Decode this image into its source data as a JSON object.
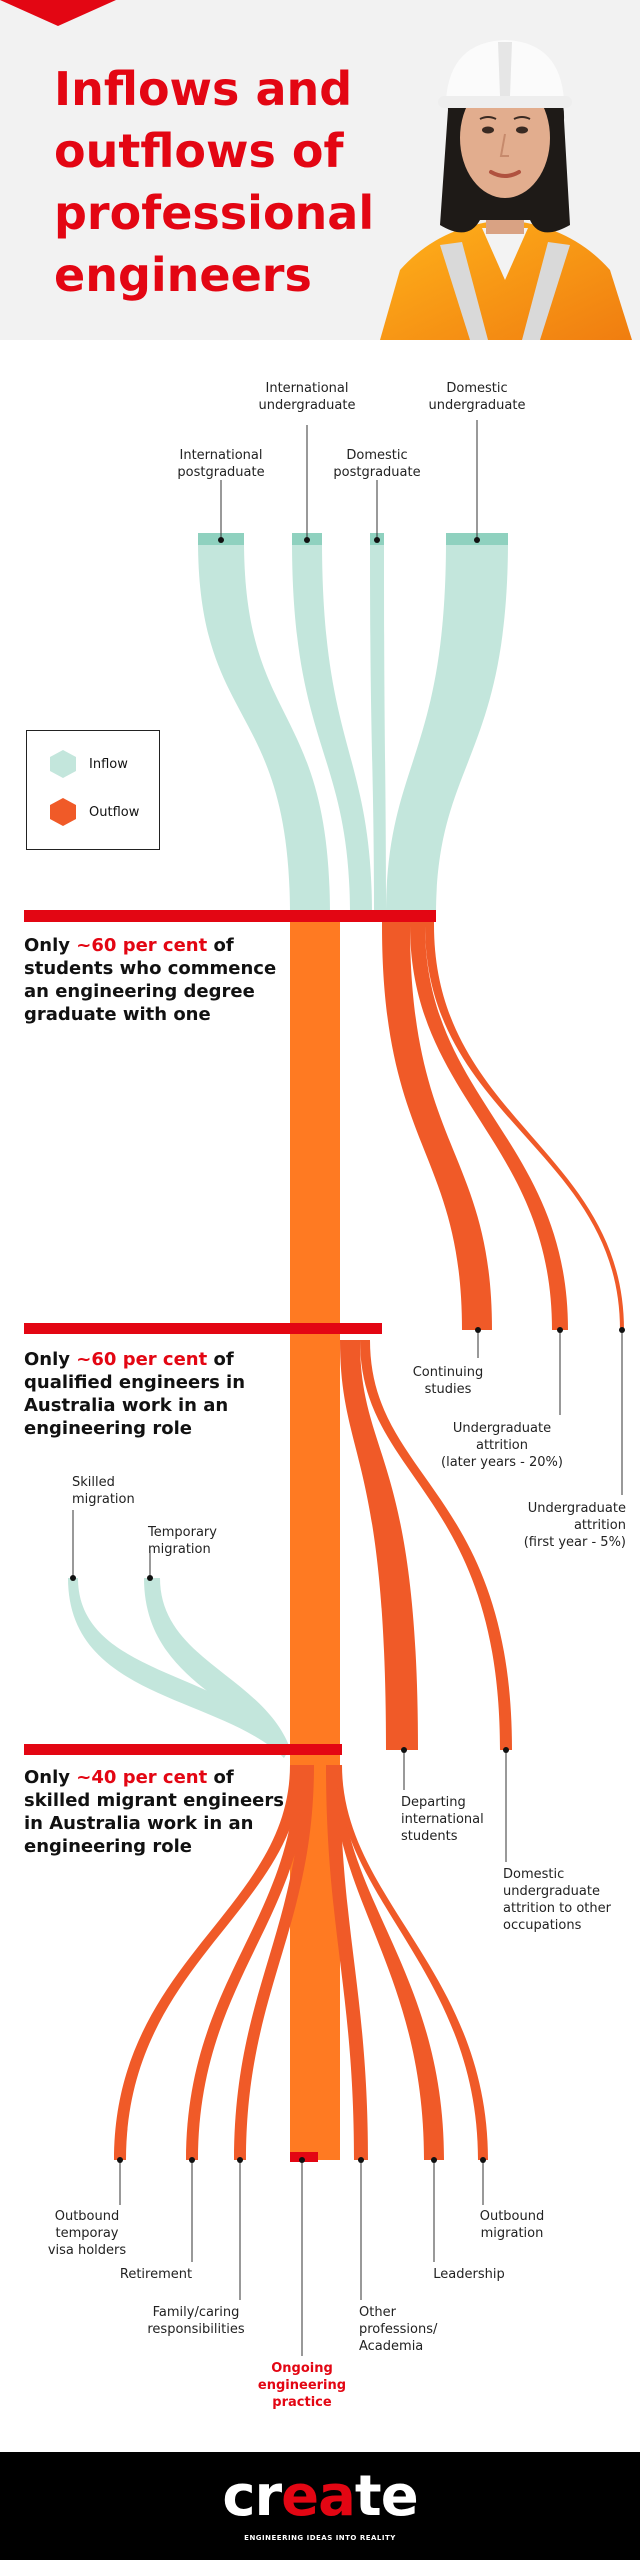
{
  "hero": {
    "title": "Inflows and outflows of professional engineers"
  },
  "legend": {
    "inflow": "Inflow",
    "outflow": "Outflow"
  },
  "inflows": {
    "international_postgraduate": "International\npostgraduate",
    "international_undergraduate": "International\nundergraduate",
    "domestic_postgraduate": "Domestic\npostgraduate",
    "domestic_undergraduate": "Domestic\nundergraduate"
  },
  "stats": [
    {
      "prefix": "Only ",
      "highlight": "~60 per cent",
      "suffix": " of students who commence an engineering degree graduate with one"
    },
    {
      "prefix": "Only ",
      "highlight": "~60 per cent",
      "suffix": " of qualified engineers in Australia work in an engineering role"
    },
    {
      "prefix": "Only ",
      "highlight": "~40 per cent",
      "suffix": " of skilled migrant engineers in Australia work in an engineering role"
    }
  ],
  "outflows_stage1": {
    "continuing_studies": "Continuing\nstudies",
    "undergrad_attrition_later": "Undergraduate\nattrition\n(later years - 20%)",
    "undergrad_attrition_first": "Undergraduate\nattrition\n(first year - 5%)"
  },
  "migration": {
    "skilled": "Skilled\nmigration",
    "temporary": "Temporary\nmigration"
  },
  "outflows_stage2": {
    "departing_international": "Departing\ninternational\nstudents",
    "domestic_attrition": "Domestic\nundergraduate\nattrition to other\noccupations"
  },
  "outflows_stage3": {
    "outbound_temporary": "Outbound\ntemporay\nvisa holders",
    "retirement": "Retirement",
    "family_caring": "Family/caring\nresponsibilities",
    "ongoing": "Ongoing\nengineering\npractice",
    "other_professions": "Other\nprofessions/\nAcademia",
    "leadership": "Leadership",
    "outbound_migration": "Outbound\nmigration"
  },
  "footer": {
    "logo_prefix": "cr",
    "logo_accent": "ea",
    "logo_suffix": "te",
    "tagline": "ENGINEERING IDEAS INTO REALITY"
  },
  "colors": {
    "inflow": "#c3e6dc",
    "inflow_cap": "#8fd1bf",
    "outflow": "#f05a28",
    "main": "#ff7a22",
    "accent": "#e30613"
  }
}
